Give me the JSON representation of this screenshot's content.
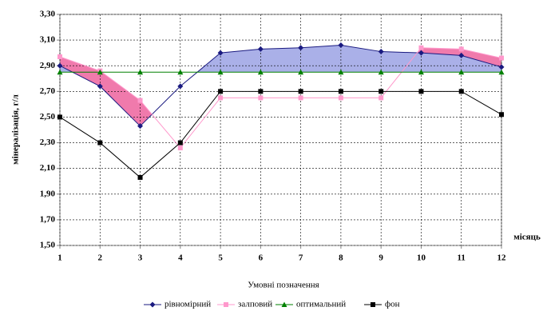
{
  "chart_data": {
    "type": "line",
    "x": [
      1,
      2,
      3,
      4,
      5,
      6,
      7,
      8,
      9,
      10,
      11,
      12
    ],
    "xlim": [
      1,
      12
    ],
    "xticks": [
      1,
      2,
      3,
      4,
      5,
      6,
      7,
      8,
      9,
      10,
      11,
      12
    ],
    "x_label": "місяць",
    "y_label": "мінералізація, г/л",
    "ylim": [
      1.5,
      3.3
    ],
    "yticks": [
      {
        "value": 1.5,
        "label": "1,50"
      },
      {
        "value": 1.7,
        "label": "1,70"
      },
      {
        "value": 1.9,
        "label": "1,90"
      },
      {
        "value": 2.1,
        "label": "2,10"
      },
      {
        "value": 2.3,
        "label": "2,30"
      },
      {
        "value": 2.5,
        "label": "2,50"
      },
      {
        "value": 2.7,
        "label": "2,70"
      },
      {
        "value": 2.9,
        "label": "2,90"
      },
      {
        "value": 3.1,
        "label": "3,10"
      },
      {
        "value": 3.3,
        "label": "3,30"
      }
    ],
    "grid": true,
    "legend_title": "Умовні позначення",
    "legend_position": "bottom",
    "series": [
      {
        "name": "рівномірний",
        "color": "#1a1a80",
        "marker": "diamond",
        "values": [
          2.9,
          2.74,
          2.43,
          2.74,
          3.0,
          3.03,
          3.04,
          3.06,
          3.01,
          3.0,
          2.98,
          2.89
        ]
      },
      {
        "name": "залповий",
        "color": "#ff99cc",
        "marker": "square",
        "values": [
          2.97,
          2.86,
          2.63,
          2.26,
          2.65,
          2.65,
          2.65,
          2.65,
          2.65,
          3.04,
          3.03,
          2.96
        ]
      },
      {
        "name": "оптимальний",
        "color": "#008000",
        "marker": "triangle",
        "values": [
          2.85,
          2.85,
          2.85,
          2.85,
          2.85,
          2.85,
          2.85,
          2.85,
          2.85,
          2.85,
          2.85,
          2.85
        ]
      },
      {
        "name": "фон",
        "color": "#000000",
        "marker": "square",
        "values": [
          2.5,
          2.3,
          2.03,
          2.3,
          2.7,
          2.7,
          2.7,
          2.7,
          2.7,
          2.7,
          2.7,
          2.52
        ]
      }
    ]
  }
}
